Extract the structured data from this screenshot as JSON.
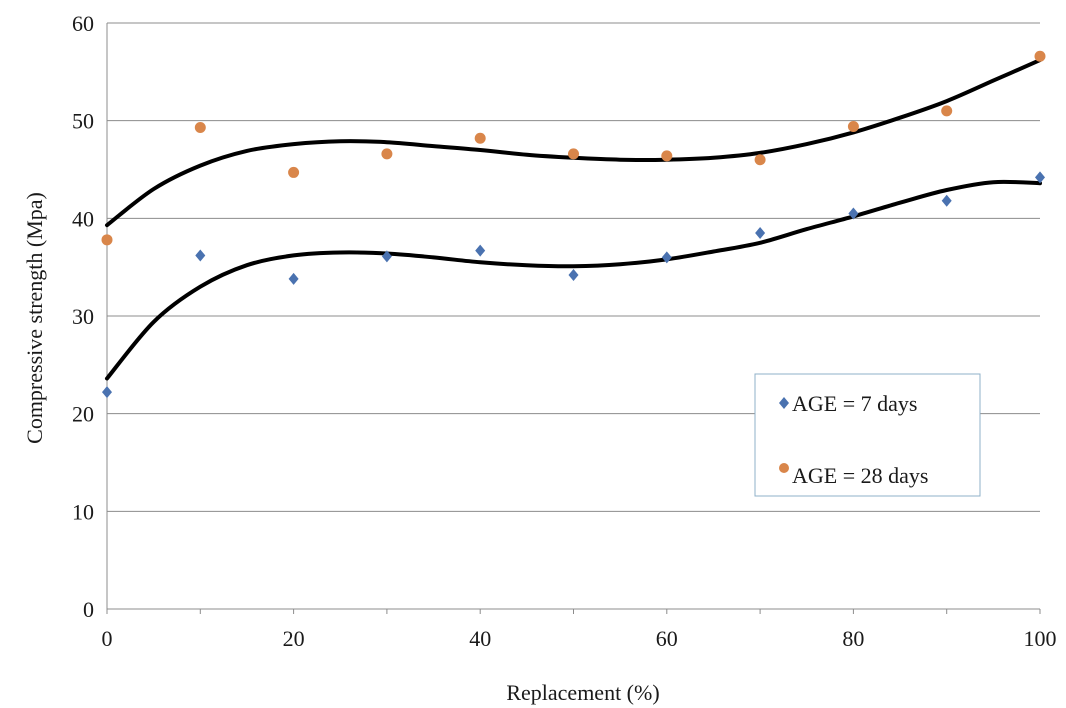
{
  "chart_data": {
    "type": "scatter",
    "title": "",
    "xlabel": "Replacement (%)",
    "ylabel": "Compressive strength (Mpa)",
    "xlim": [
      0,
      100
    ],
    "ylim": [
      0,
      60
    ],
    "xticks": [
      0,
      20,
      40,
      60,
      80,
      100
    ],
    "yticks": [
      0,
      10,
      20,
      30,
      40,
      50,
      60
    ],
    "grid": "horizontal",
    "legend_position": "right",
    "series": [
      {
        "name": "AGE = 7 days",
        "marker": "diamond",
        "color": "#4a72b0",
        "x": [
          0,
          10,
          20,
          30,
          40,
          50,
          60,
          70,
          80,
          90,
          100
        ],
        "y": [
          22.2,
          36.2,
          33.8,
          36.1,
          36.7,
          34.2,
          36.0,
          38.5,
          40.5,
          41.8,
          44.2
        ]
      },
      {
        "name": "AGE = 28 days",
        "marker": "circle",
        "color": "#d9864a",
        "x": [
          0,
          10,
          20,
          30,
          40,
          50,
          60,
          70,
          80,
          90,
          100
        ],
        "y": [
          37.8,
          49.3,
          44.7,
          46.6,
          48.2,
          46.6,
          46.4,
          46.0,
          49.4,
          51.0,
          56.6
        ]
      }
    ],
    "trendlines": [
      {
        "series": "AGE = 7 days",
        "kind": "polynomial",
        "color": "#000000",
        "x": [
          0,
          5,
          10,
          15,
          20,
          25,
          30,
          35,
          40,
          45,
          50,
          55,
          60,
          65,
          70,
          75,
          80,
          85,
          90,
          95,
          100
        ],
        "y": [
          23.6,
          29.4,
          33.0,
          35.2,
          36.2,
          36.5,
          36.4,
          36.0,
          35.5,
          35.2,
          35.1,
          35.3,
          35.8,
          36.6,
          37.5,
          38.9,
          40.2,
          41.6,
          42.9,
          43.7,
          43.6
        ]
      },
      {
        "series": "AGE = 28 days",
        "kind": "polynomial",
        "color": "#000000",
        "x": [
          0,
          5,
          10,
          15,
          20,
          25,
          30,
          35,
          40,
          45,
          50,
          55,
          60,
          65,
          70,
          75,
          80,
          85,
          90,
          95,
          100
        ],
        "y": [
          39.3,
          43.0,
          45.4,
          46.9,
          47.6,
          47.9,
          47.8,
          47.4,
          47.0,
          46.5,
          46.2,
          46.0,
          46.0,
          46.2,
          46.7,
          47.6,
          48.8,
          50.3,
          52.0,
          54.1,
          56.2
        ]
      }
    ]
  }
}
